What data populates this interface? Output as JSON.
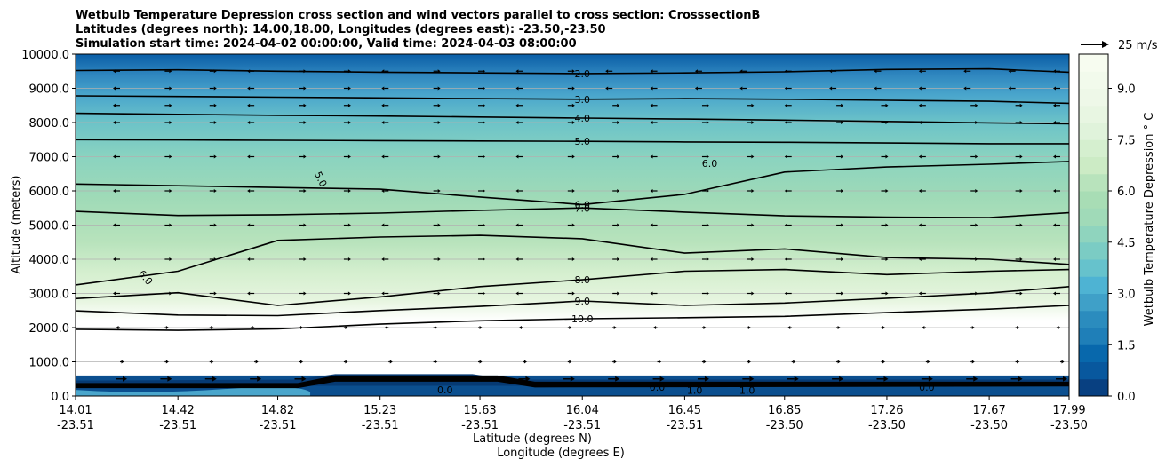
{
  "chart_data": {
    "type": "heatmap",
    "title_lines": [
      "Wetbulb Temperature Depression cross section and wind vectors parallel to cross section: CrosssectionB",
      "Latitudes (degrees north): 14.00,18.00, Longitudes (degrees east): -23.50,-23.50",
      "Simulation start time: 2024-04-02 00:00:00, Valid time: 2024-04-03 08:00:00"
    ],
    "ylabel": "Altitude (meters)",
    "xlabel_lines": [
      "Latitude (degrees N)",
      "Longitude (degrees E)"
    ],
    "ylim": [
      0,
      10000
    ],
    "y_ticks": [
      "0.0",
      "1000.0",
      "2000.0",
      "3000.0",
      "4000.0",
      "5000.0",
      "6000.0",
      "7000.0",
      "8000.0",
      "9000.0",
      "10000.0"
    ],
    "x_range": [
      14.01,
      17.99
    ],
    "x_ticks": [
      {
        "lat": "14.01",
        "lon": "-23.51"
      },
      {
        "lat": "14.42",
        "lon": "-23.51"
      },
      {
        "lat": "14.82",
        "lon": "-23.51"
      },
      {
        "lat": "15.23",
        "lon": "-23.51"
      },
      {
        "lat": "15.63",
        "lon": "-23.51"
      },
      {
        "lat": "16.04",
        "lon": "-23.51"
      },
      {
        "lat": "16.45",
        "lon": "-23.51"
      },
      {
        "lat": "16.85",
        "lon": "-23.50"
      },
      {
        "lat": "17.26",
        "lon": "-23.50"
      },
      {
        "lat": "17.67",
        "lon": "-23.50"
      },
      {
        "lat": "17.99",
        "lon": "-23.50"
      }
    ],
    "grid": "horizontal",
    "colorbar": {
      "label": "Wetbulb Temperature Depression ° C",
      "min": 0,
      "max": 10,
      "ticks": [
        "0.0",
        "1.5",
        "3.0",
        "4.5",
        "6.0",
        "7.5",
        "9.0"
      ],
      "colors": [
        "#084081",
        "#0868ac",
        "#2b8cbe",
        "#4eb3d3",
        "#7bccc4",
        "#a8ddb5",
        "#ccebc5",
        "#e0f3db",
        "#f7fcf0"
      ]
    },
    "wind_key": "25 m/s",
    "contours": [
      {
        "level": 2.0,
        "label": "2.0",
        "alt": [
          9520,
          9540,
          9500,
          9470,
          9450,
          9430,
          9450,
          9480,
          9550,
          9570,
          9470
        ]
      },
      {
        "level": 3.0,
        "label": "3.0",
        "alt": [
          8780,
          8760,
          8740,
          8720,
          8700,
          8680,
          8700,
          8680,
          8650,
          8620,
          8560
        ]
      },
      {
        "level": 4.0,
        "label": "4.0",
        "alt": [
          8270,
          8240,
          8210,
          8190,
          8160,
          8130,
          8100,
          8070,
          8030,
          7990,
          7960
        ]
      },
      {
        "level": 5.0,
        "label": "5.0",
        "alt": [
          7500,
          7490,
          7480,
          7470,
          7460,
          7450,
          7430,
          7420,
          7400,
          7380,
          7380
        ]
      },
      {
        "level": 6.0,
        "label": "6.0",
        "alt": [
          6200,
          6150,
          6100,
          6050,
          5820,
          5600,
          5900,
          6550,
          6700,
          6780,
          6860
        ]
      },
      {
        "level": 7.0,
        "label": "7.0",
        "alt": [
          5400,
          5280,
          5300,
          5350,
          5430,
          5500,
          5380,
          5270,
          5230,
          5220,
          5360
        ]
      },
      {
        "level": 7.5,
        "label": "",
        "alt": [
          3250,
          3650,
          4550,
          4650,
          4700,
          4600,
          4180,
          4300,
          4050,
          4000,
          3850
        ]
      },
      {
        "level": 8.0,
        "label": "8.0",
        "alt": [
          2850,
          3020,
          2650,
          2900,
          3200,
          3400,
          3650,
          3700,
          3550,
          3650,
          3700
        ]
      },
      {
        "level": 9.0,
        "label": "9.0",
        "alt": [
          2490,
          2370,
          2350,
          2500,
          2620,
          2780,
          2650,
          2720,
          2860,
          3010,
          3200
        ]
      },
      {
        "level": 10.0,
        "label": "10.0",
        "alt": [
          1950,
          1920,
          1960,
          2100,
          2200,
          2260,
          2290,
          2330,
          2440,
          2540,
          2650
        ]
      }
    ],
    "contour_annotations": [
      "6.0",
      "5.0",
      "6.0",
      "0.0",
      "0.0",
      "1.0",
      "1.0",
      "0.0"
    ]
  }
}
